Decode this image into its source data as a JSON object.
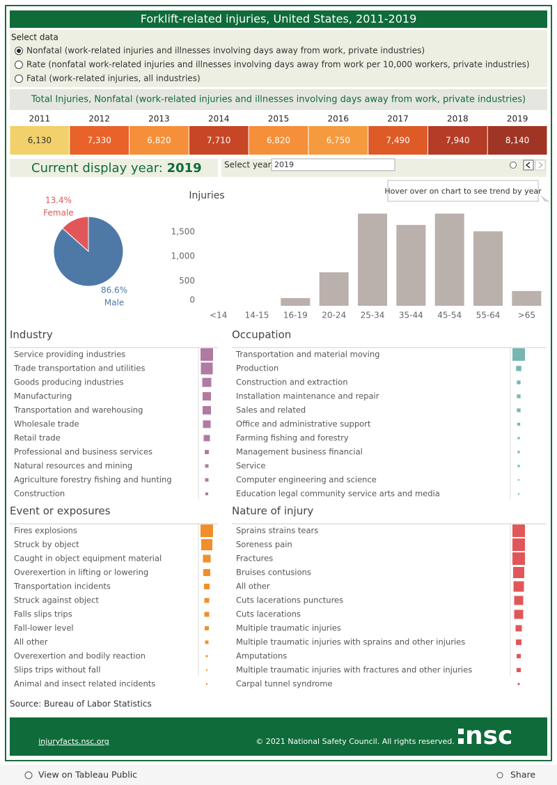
{
  "header": {
    "title": "Forklift-related injuries, United States, 2011-2019"
  },
  "select_data": {
    "label": "Select data",
    "selected": 0,
    "options": [
      "Nonfatal (work-related injuries and illnesses involving days away from work, private industries)",
      "Rate (nonfatal work-related injuries and illnesses involving days away from work per 10,000 workers, private industries)",
      "Fatal (work-related injuries, all industries)"
    ]
  },
  "subtitle": "Total Injuries, Nonfatal (work-related injuries and illnesses involving days away from work, private industries)",
  "yearly": {
    "years": [
      2011,
      2012,
      2013,
      2014,
      2015,
      2016,
      2017,
      2018,
      2019
    ],
    "values": [
      6130,
      7330,
      6820,
      7710,
      6820,
      6750,
      7490,
      7940,
      8140
    ],
    "value_labels": [
      "6,130",
      "7,330",
      "6,820",
      "7,710",
      "6,820",
      "6,750",
      "7,490",
      "7,940",
      "8,140"
    ],
    "colors": [
      "#f2d06b",
      "#e8622a",
      "#f58f3a",
      "#c74625",
      "#f58f3a",
      "#f59a3e",
      "#de5a27",
      "#b53c26",
      "#a03525"
    ]
  },
  "display_year": {
    "label": "Current display year:",
    "year": 2019
  },
  "select_year": {
    "label": "Select year",
    "value": 2019
  },
  "tooltip": "Hover over on chart to see trend by year",
  "gender_chart": {
    "type": "pie",
    "categories": [
      "Female",
      "Male"
    ],
    "values": [
      13.4,
      86.6
    ],
    "value_labels": [
      "13.4%",
      "86.6%"
    ],
    "colors": [
      "#e15759",
      "#4e79a7"
    ]
  },
  "age_chart": {
    "type": "bar",
    "title": "Injuries",
    "categories": [
      "<14",
      "14-15",
      "16-19",
      "20-24",
      "25-34",
      "35-44",
      "45-54",
      "55-64",
      ">65"
    ],
    "values": [
      0,
      0,
      155,
      680,
      1870,
      1640,
      1870,
      1510,
      300
    ],
    "color": "#bab0ac",
    "ylim": [
      0,
      1950
    ],
    "yticks": [
      0,
      500,
      {
        "value": 1000,
        "label": "1,000"
      },
      {
        "value": 1500,
        "label": "1,500"
      }
    ]
  },
  "lists": [
    {
      "title": "Industry",
      "color": "#b07aa1",
      "categories": [
        "Service providing industries",
        "Trade transportation and utilities",
        "Goods producing industries",
        "Manufacturing",
        "Transportation and warehousing",
        "Wholesale trade",
        "Retail trade",
        "Professional and business services",
        "Natural resources and mining",
        "Agriculture forestry fishing and hunting",
        "Construction"
      ],
      "values": [
        4000,
        3570,
        2090,
        1780,
        1780,
        1490,
        1000,
        440,
        310,
        310,
        200
      ]
    },
    {
      "title": "Occupation",
      "color": "#76b7b2",
      "categories": [
        "Transportation and material moving",
        "Production",
        "Construction and extraction",
        "Installation maintenance and repair",
        "Sales and related",
        "Office and administrative support",
        "Farming fishing and forestry",
        "Management business financial",
        "Service",
        "Computer engineering and science",
        "Education legal community service arts and media"
      ],
      "values": [
        5800,
        1000,
        500,
        500,
        500,
        320,
        180,
        180,
        180,
        80,
        80
      ]
    },
    {
      "title": "Event or exposures",
      "color": "#f28e2b",
      "categories": [
        "Fires explosions",
        "Struck by object",
        "Caught in object equipment material",
        "Overexertion in lifting or lowering",
        "Transportation incidents",
        "Struck against object",
        "Falls slips trips",
        "Fall-lower level",
        "All other",
        "Overexertion and bodily reaction",
        "Slips trips without fall",
        "Animal and insect related incidents"
      ],
      "values": [
        1200,
        950,
        450,
        370,
        240,
        180,
        180,
        130,
        90,
        30,
        15,
        15
      ]
    },
    {
      "title": "Nature of injury",
      "color": "#e15759",
      "categories": [
        "Sprains strains tears",
        "Soreness pain",
        "Fractures",
        "Bruises contusions",
        "All other",
        "Cuts lacerations punctures",
        "Cuts lacerations",
        "Multiple traumatic injuries",
        "Multiple traumatic injuries with sprains and other injuries",
        "Amputations",
        "Multiple traumatic injuries with fractures and other injuries",
        "Carpal tunnel syndrome"
      ],
      "values": [
        2300,
        2300,
        2300,
        1820,
        1600,
        1200,
        1200,
        580,
        450,
        260,
        260,
        65
      ]
    }
  ],
  "source": "Source: Bureau of Labor Statistics",
  "footer": {
    "link": "injuryfacts.nsc.org",
    "copyright": "© 2021 National Safety Council. All rights reserved.",
    "logo": "nsc"
  },
  "toolbar": {
    "view": "View on Tableau Public",
    "share": "Share"
  }
}
